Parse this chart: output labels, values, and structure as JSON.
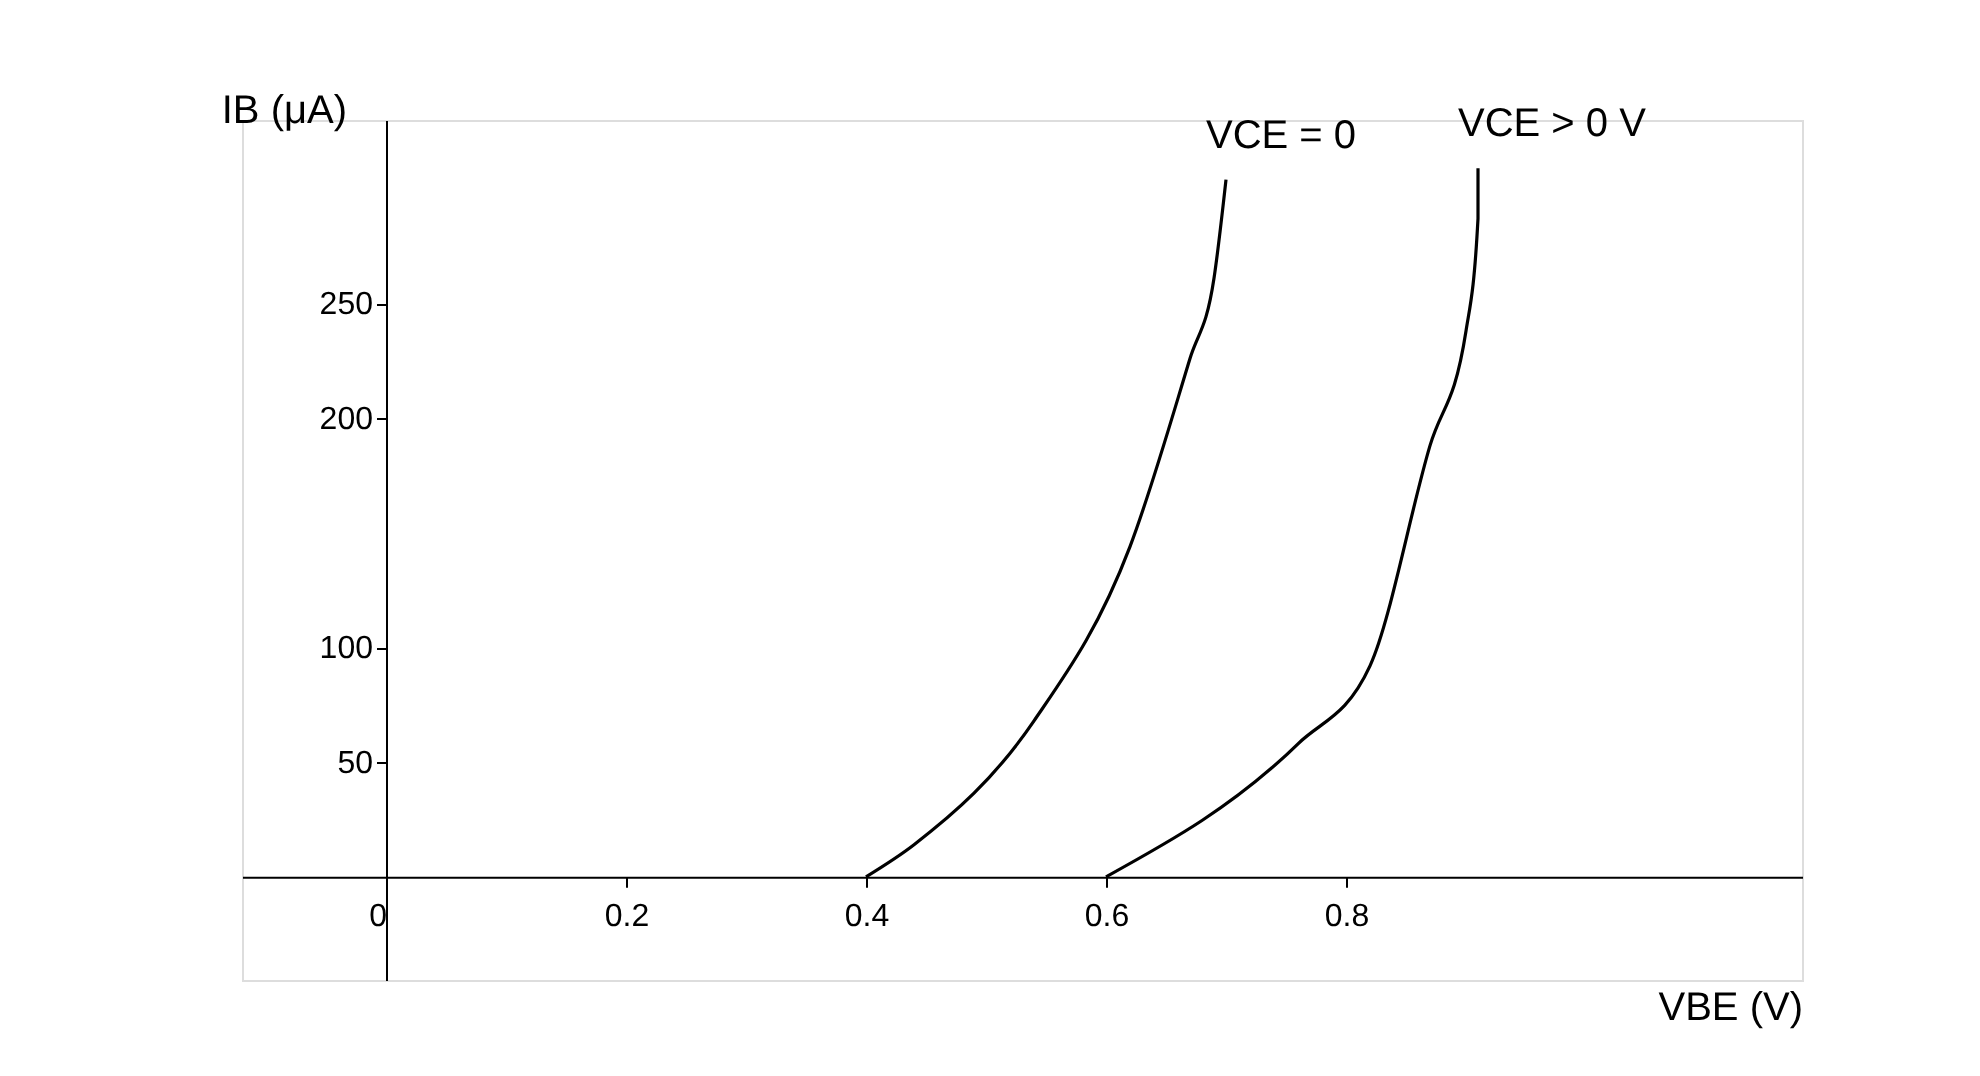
{
  "chart_data": {
    "type": "line",
    "xlabel": "VBE (V)",
    "ylabel": "IB (μA)",
    "xlim": [
      -0.12,
      1.18
    ],
    "ylim": [
      -45,
      330
    ],
    "xticks": [
      0,
      0.2,
      0.4,
      0.6,
      0.8
    ],
    "yticks": [
      50,
      100,
      200,
      250
    ],
    "grid": false,
    "marker": "none",
    "line_style": "solid",
    "series": [
      {
        "name": "VCE = 0",
        "color": "#000000",
        "x": [
          0.4,
          0.44,
          0.54,
          0.62,
          0.67,
          0.69,
          0.7
        ],
        "values": [
          0,
          14,
          68,
          144,
          226,
          261,
          304
        ]
      },
      {
        "name": "VCE > 0 V",
        "color": "#000000",
        "x": [
          0.6,
          0.76,
          0.82,
          0.87,
          0.9,
          0.91,
          0.91
        ],
        "values": [
          0,
          58,
          92,
          188,
          238,
          287,
          309
        ]
      }
    ]
  }
}
